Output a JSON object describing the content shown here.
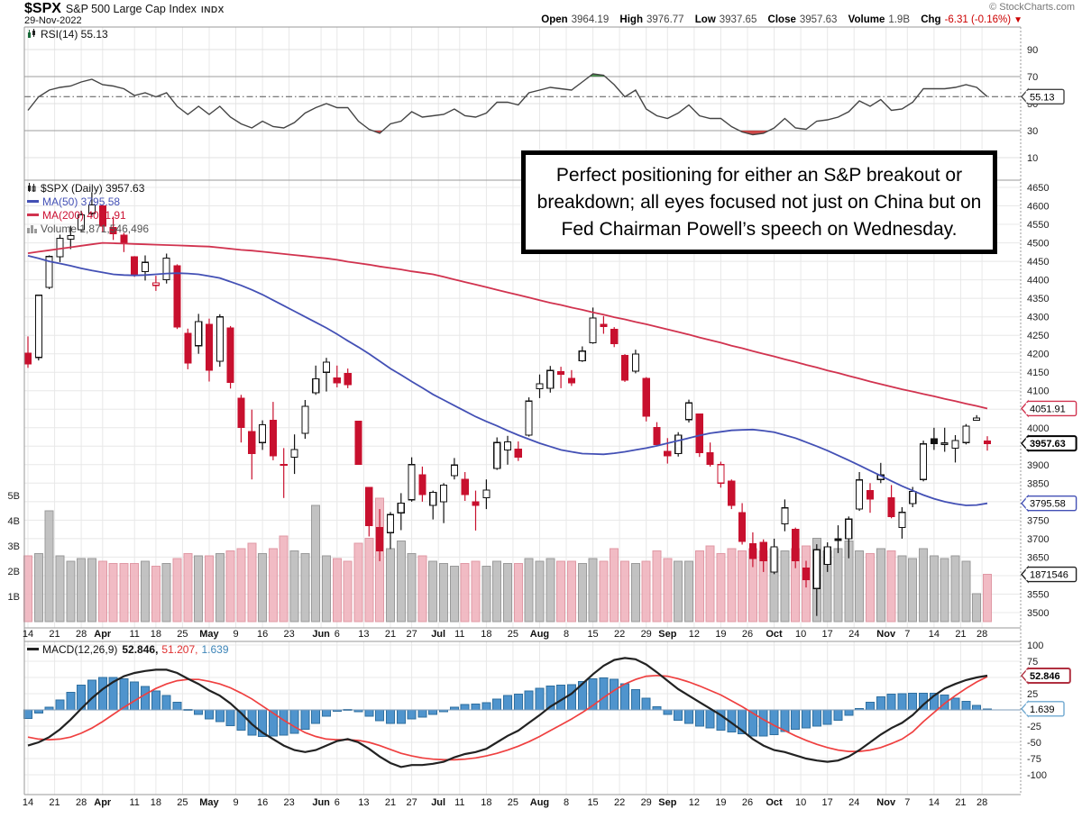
{
  "header": {
    "symbol": "$SPX",
    "name": "S&P 500 Large Cap Index",
    "exchange": "INDX",
    "date": "29-Nov-2022",
    "credit": "© StockCharts.com",
    "quote": {
      "open_label": "Open",
      "open": "3964.19",
      "high_label": "High",
      "high": "3976.77",
      "low_label": "Low",
      "low": "3937.65",
      "close_label": "Close",
      "close": "3957.63",
      "volume_label": "Volume",
      "volume": "1.9B",
      "chg_label": "Chg",
      "chg": "-6.31 (-0.16%)",
      "chg_arrow": "▼"
    }
  },
  "annotation": {
    "text": "Perfect positioning for either an S&P breakout or breakdown; all eyes focused not just on China but on Fed Chairman Powell’s speech on Wednesday."
  },
  "legends": {
    "rsi": "RSI(14) 55.13",
    "spx": "$SPX (Daily) 3957.63",
    "ma50": "MA(50) 3795.58",
    "ma200": "MA(200) 4051.91",
    "volume": "Volume 1,871,546,496",
    "macd_name": "MACD(12,26,9)",
    "macd_value": "52.846,",
    "signal_value": "51.207,",
    "hist_value": "1.639"
  },
  "callouts": {
    "rsi_last": "55.13",
    "ma200_last": "4051.91",
    "close_last": "3957.63",
    "ma50_last": "3795.58",
    "volume_last": "1871546",
    "macd_last": "52.846",
    "hist_last": "1.639"
  },
  "colors": {
    "candle_down": "#c8102e",
    "candle_up_stroke": "#000000",
    "ma50": "#4350b5",
    "ma200": "#d1334f",
    "macd_line": "#222222",
    "signal_line": "#ef4040",
    "hist_fill": "#4f94cd",
    "hist_stroke": "#2f6f9f",
    "vol_up": "#bcbcbc",
    "vol_up_stroke": "#909090",
    "vol_down": "#f0b4be",
    "vol_down_stroke": "#dd8e9c",
    "rsi_line": "#444444",
    "grid": "#e8e8e8",
    "border": "#999999",
    "overbought_fill": "#2e7d32",
    "oversold_fill": "#c62828",
    "neg": "#cc0000"
  },
  "chart_data": {
    "type": "candlestick+indicators",
    "symbol": "$SPX",
    "timeframe": "daily",
    "date_range": "14-Mar-2022 to 29-Nov-2022",
    "panels": [
      "RSI(14)",
      "price+volume",
      "MACD(12,26,9)"
    ],
    "rsi_axis": {
      "ticks": [
        90,
        70,
        50,
        30,
        10
      ],
      "overbought": 70,
      "oversold": 30,
      "last": 55.13
    },
    "price_axis": {
      "min": 3500,
      "max": 4650,
      "step": 50,
      "tick_labels": [
        4650,
        4600,
        4550,
        4500,
        4450,
        4400,
        4350,
        4300,
        4250,
        4200,
        4150,
        4100,
        4000,
        3900,
        3850,
        3750,
        3700,
        3650,
        3550,
        3500
      ]
    },
    "volume_axis": {
      "ticks": [
        [
          "5B",
          5
        ],
        [
          "4B",
          4
        ],
        [
          "3B",
          3
        ],
        [
          "2B",
          2
        ],
        [
          "1B",
          1
        ]
      ],
      "last_billions": 1.871546496
    },
    "macd_axis": {
      "min": -100,
      "max": 100,
      "step": 25,
      "tick_labels": [
        100,
        75,
        25,
        -25,
        -50,
        -75,
        -100
      ],
      "last_macd": 52.846,
      "last_signal": 51.207,
      "last_hist": 1.639
    },
    "x_ticks": [
      {
        "label": "14",
        "d": 0
      },
      {
        "label": "21",
        "d": 5
      },
      {
        "label": "28",
        "d": 10
      },
      {
        "label": "Apr",
        "d": 14,
        "bold": 1
      },
      {
        "label": "11",
        "d": 20
      },
      {
        "label": "18",
        "d": 24
      },
      {
        "label": "25",
        "d": 29
      },
      {
        "label": "May",
        "d": 34,
        "bold": 1
      },
      {
        "label": "9",
        "d": 39
      },
      {
        "label": "16",
        "d": 44
      },
      {
        "label": "23",
        "d": 49
      },
      {
        "label": "Jun",
        "d": 55,
        "bold": 1
      },
      {
        "label": "6",
        "d": 58
      },
      {
        "label": "13",
        "d": 63
      },
      {
        "label": "21",
        "d": 68
      },
      {
        "label": "27",
        "d": 72
      },
      {
        "label": "Jul",
        "d": 77,
        "bold": 1
      },
      {
        "label": "11",
        "d": 81
      },
      {
        "label": "18",
        "d": 86
      },
      {
        "label": "25",
        "d": 91
      },
      {
        "label": "Aug",
        "d": 96,
        "bold": 1
      },
      {
        "label": "8",
        "d": 101
      },
      {
        "label": "15",
        "d": 106
      },
      {
        "label": "22",
        "d": 111
      },
      {
        "label": "29",
        "d": 116
      },
      {
        "label": "Sep",
        "d": 120,
        "bold": 1
      },
      {
        "label": "12",
        "d": 125
      },
      {
        "label": "19",
        "d": 130
      },
      {
        "label": "26",
        "d": 135
      },
      {
        "label": "Oct",
        "d": 140,
        "bold": 1
      },
      {
        "label": "10",
        "d": 145
      },
      {
        "label": "17",
        "d": 150
      },
      {
        "label": "24",
        "d": 155
      },
      {
        "label": "Nov",
        "d": 161,
        "bold": 1
      },
      {
        "label": "7",
        "d": 165
      },
      {
        "label": "14",
        "d": 170
      },
      {
        "label": "21",
        "d": 175
      },
      {
        "label": "28",
        "d": 179
      }
    ],
    "candles_note": "sampled every 2nd trading day; [dayIndex, open, high, low, close, volumeBillions]",
    "candles": [
      [
        0,
        4202,
        4247,
        4162,
        4173,
        2.6
      ],
      [
        2,
        4190,
        4360,
        4182,
        4358,
        2.7
      ],
      [
        4,
        4380,
        4466,
        4375,
        4463,
        4.4
      ],
      [
        6,
        4462,
        4522,
        4448,
        4512,
        2.6
      ],
      [
        8,
        4510,
        4546,
        4483,
        4520,
        2.4
      ],
      [
        10,
        4535,
        4587,
        4528,
        4576,
        2.5
      ],
      [
        12,
        4580,
        4637,
        4573,
        4603,
        2.5
      ],
      [
        14,
        4600,
        4604,
        4530,
        4546,
        2.4
      ],
      [
        16,
        4542,
        4571,
        4508,
        4525,
        2.3
      ],
      [
        18,
        4521,
        4527,
        4475,
        4500,
        2.3
      ],
      [
        20,
        4462,
        4464,
        4408,
        4413,
        2.3
      ],
      [
        22,
        4422,
        4466,
        4398,
        4447,
        2.4
      ],
      [
        24,
        4385,
        4411,
        4370,
        4392,
        2.2
      ],
      [
        26,
        4400,
        4471,
        4390,
        4459,
        2.3
      ],
      [
        28,
        4438,
        4442,
        4267,
        4272,
        2.5
      ],
      [
        30,
        4255,
        4268,
        4158,
        4175,
        2.7
      ],
      [
        32,
        4222,
        4308,
        4200,
        4287,
        2.6
      ],
      [
        34,
        4280,
        4295,
        4125,
        4155,
        2.6
      ],
      [
        36,
        4180,
        4307,
        4165,
        4300,
        2.7
      ],
      [
        38,
        4270,
        4275,
        4106,
        4123,
        2.8
      ],
      [
        40,
        4080,
        4089,
        3960,
        4001,
        2.9
      ],
      [
        42,
        3990,
        4049,
        3860,
        3930,
        3.1
      ],
      [
        44,
        3960,
        4020,
        3940,
        4008,
        2.7
      ],
      [
        46,
        4020,
        4070,
        3912,
        3924,
        2.9
      ],
      [
        48,
        3900,
        3945,
        3810,
        3901,
        3.4
      ],
      [
        50,
        3920,
        3982,
        3875,
        3941,
        2.8
      ],
      [
        52,
        3985,
        4075,
        3970,
        4058,
        2.7
      ],
      [
        54,
        4095,
        4168,
        4089,
        4132,
        4.6
      ],
      [
        56,
        4150,
        4189,
        4098,
        4177,
        2.6
      ],
      [
        58,
        4134,
        4168,
        4109,
        4121,
        2.5
      ],
      [
        60,
        4147,
        4160,
        4107,
        4116,
        2.4
      ],
      [
        62,
        4017,
        4018,
        3900,
        3901,
        3.1
      ],
      [
        64,
        3838,
        3838,
        3706,
        3736,
        3.3
      ],
      [
        66,
        3730,
        3780,
        3639,
        3667,
        4.9
      ],
      [
        68,
        3716,
        3772,
        3672,
        3765,
        2.9
      ],
      [
        70,
        3770,
        3823,
        3723,
        3796,
        3.2
      ],
      [
        72,
        3805,
        3920,
        3800,
        3900,
        2.7
      ],
      [
        74,
        3873,
        3895,
        3800,
        3819,
        2.6
      ],
      [
        76,
        3790,
        3830,
        3752,
        3825,
        2.4
      ],
      [
        78,
        3800,
        3850,
        3742,
        3845,
        2.3
      ],
      [
        80,
        3870,
        3918,
        3860,
        3899,
        2.2
      ],
      [
        82,
        3860,
        3880,
        3802,
        3819,
        2.3
      ],
      [
        84,
        3800,
        3830,
        3722,
        3790,
        2.4
      ],
      [
        86,
        3810,
        3860,
        3780,
        3831,
        2.2
      ],
      [
        88,
        3890,
        3974,
        3886,
        3960,
        2.4
      ],
      [
        90,
        3940,
        3978,
        3900,
        3962,
        2.3
      ],
      [
        92,
        3942,
        3963,
        3910,
        3921,
        2.3
      ],
      [
        94,
        3980,
        4082,
        3976,
        4072,
        2.5
      ],
      [
        96,
        4105,
        4144,
        4080,
        4119,
        2.4
      ],
      [
        98,
        4107,
        4167,
        4095,
        4155,
        2.5
      ],
      [
        100,
        4152,
        4165,
        4107,
        4145,
        2.4
      ],
      [
        102,
        4133,
        4156,
        4113,
        4122,
        2.4
      ],
      [
        104,
        4181,
        4220,
        4178,
        4207,
        2.3
      ],
      [
        106,
        4230,
        4325,
        4227,
        4297,
        2.5
      ],
      [
        108,
        4280,
        4302,
        4254,
        4274,
        2.4
      ],
      [
        110,
        4266,
        4272,
        4218,
        4228,
        2.9
      ],
      [
        112,
        4195,
        4199,
        4124,
        4129,
        2.4
      ],
      [
        114,
        4153,
        4211,
        4147,
        4199,
        2.3
      ],
      [
        116,
        4133,
        4137,
        4017,
        4031,
        2.4
      ],
      [
        118,
        4000,
        4015,
        3954,
        3955,
        2.8
      ],
      [
        120,
        3936,
        3972,
        3903,
        3924,
        2.5
      ],
      [
        122,
        3930,
        3988,
        3922,
        3980,
        2.4
      ],
      [
        124,
        4022,
        4076,
        4014,
        4067,
        2.4
      ],
      [
        126,
        4037,
        4038,
        3921,
        3933,
        2.8
      ],
      [
        128,
        3932,
        3960,
        3895,
        3901,
        3.0
      ],
      [
        130,
        3850,
        3908,
        3838,
        3900,
        2.7
      ],
      [
        132,
        3855,
        3860,
        3780,
        3790,
        2.9
      ],
      [
        134,
        3770,
        3796,
        3684,
        3693,
        2.8
      ],
      [
        136,
        3686,
        3717,
        3623,
        3647,
        2.9
      ],
      [
        138,
        3690,
        3698,
        3610,
        3640,
        2.8
      ],
      [
        140,
        3610,
        3700,
        3604,
        3678,
        2.9
      ],
      [
        142,
        3740,
        3806,
        3720,
        3783,
        2.8
      ],
      [
        144,
        3725,
        3730,
        3620,
        3640,
        2.9
      ],
      [
        146,
        3620,
        3640,
        3568,
        3589,
        3.0
      ],
      [
        148,
        3565,
        3685,
        3491,
        3670,
        3.3
      ],
      [
        150,
        3630,
        3690,
        3610,
        3678,
        2.8
      ],
      [
        152,
        3700,
        3736,
        3661,
        3695,
        2.9
      ],
      [
        154,
        3700,
        3760,
        3647,
        3753,
        3.2
      ],
      [
        156,
        3780,
        3880,
        3775,
        3859,
        2.8
      ],
      [
        158,
        3830,
        3850,
        3770,
        3807,
        2.7
      ],
      [
        160,
        3860,
        3905,
        3850,
        3872,
        2.9
      ],
      [
        162,
        3810,
        3845,
        3755,
        3760,
        2.8
      ],
      [
        164,
        3730,
        3785,
        3700,
        3771,
        2.6
      ],
      [
        166,
        3795,
        3840,
        3785,
        3828,
        2.5
      ],
      [
        168,
        3860,
        3965,
        3855,
        3956,
        2.9
      ],
      [
        170,
        3970,
        4000,
        3940,
        3957,
        2.6
      ],
      [
        172,
        3955,
        4000,
        3935,
        3959,
        2.5
      ],
      [
        174,
        3945,
        3980,
        3906,
        3965,
        2.6
      ],
      [
        176,
        3960,
        4010,
        3955,
        4004,
        2.4
      ],
      [
        178,
        4020,
        4034,
        4020,
        4026,
        1.1
      ],
      [
        180,
        3964,
        3977,
        3938,
        3957.63,
        1.87
      ]
    ],
    "ma50": [
      4465,
      4458,
      4450,
      4444,
      4438,
      4431,
      4425,
      4420,
      4415,
      4413,
      4412,
      4413,
      4415,
      4417,
      4418,
      4417,
      4415,
      4410,
      4405,
      4395,
      4385,
      4373,
      4360,
      4345,
      4330,
      4315,
      4300,
      4285,
      4270,
      4253,
      4235,
      4218,
      4200,
      4180,
      4160,
      4143,
      4125,
      4108,
      4090,
      4075,
      4060,
      4045,
      4030,
      4017,
      4005,
      3992,
      3980,
      3969,
      3958,
      3949,
      3940,
      3935,
      3930,
      3929,
      3928,
      3931,
      3935,
      3940,
      3945,
      3951,
      3958,
      3965,
      3972,
      3979,
      3985,
      3989,
      3993,
      3994,
      3995,
      3992,
      3988,
      3980,
      3972,
      3961,
      3950,
      3938,
      3925,
      3912,
      3898,
      3884,
      3870,
      3856,
      3842,
      3830,
      3818,
      3808,
      3800,
      3794,
      3790,
      3791,
      3795.58
    ],
    "ma200": [
      4472,
      4476,
      4480,
      4484,
      4488,
      4492,
      4496,
      4500,
      4499,
      4498,
      4497,
      4496,
      4495,
      4494,
      4493,
      4492,
      4491,
      4490,
      4487,
      4484,
      4481,
      4479,
      4476,
      4473,
      4470,
      4467,
      4464,
      4461,
      4458,
      4454,
      4449,
      4445,
      4441,
      4436,
      4432,
      4428,
      4423,
      4419,
      4415,
      4408,
      4401,
      4394,
      4387,
      4380,
      4373,
      4366,
      4359,
      4352,
      4345,
      4338,
      4332,
      4325,
      4319,
      4312,
      4306,
      4299,
      4293,
      4286,
      4280,
      4273,
      4266,
      4259,
      4252,
      4244,
      4237,
      4230,
      4222,
      4215,
      4207,
      4200,
      4193,
      4185,
      4178,
      4170,
      4163,
      4155,
      4148,
      4140,
      4133,
      4125,
      4118,
      4111,
      4104,
      4098,
      4091,
      4085,
      4078,
      4072,
      4065,
      4059,
      4051.91
    ],
    "rsi": [
      45,
      55,
      60,
      62,
      63,
      66,
      68,
      64,
      63,
      61,
      56,
      58,
      55,
      58,
      48,
      42,
      48,
      42,
      48,
      40,
      35,
      32,
      37,
      33,
      32,
      36,
      43,
      47,
      50,
      47,
      47,
      37,
      31,
      28,
      35,
      37,
      44,
      40,
      41,
      42,
      46,
      41,
      40,
      43,
      51,
      51,
      49,
      58,
      60,
      62,
      61,
      60,
      66,
      72,
      71,
      64,
      55,
      60,
      46,
      41,
      39,
      43,
      49,
      41,
      39,
      39,
      33,
      29,
      27,
      28,
      32,
      39,
      32,
      31,
      37,
      38,
      40,
      44,
      52,
      48,
      53,
      45,
      46,
      51,
      61,
      61,
      61,
      62,
      64,
      62,
      55.13
    ],
    "macd": [
      -55,
      -50,
      -42,
      -30,
      -15,
      2,
      18,
      32,
      43,
      52,
      57,
      60,
      62,
      62,
      57,
      48,
      40,
      30,
      22,
      10,
      -5,
      -22,
      -35,
      -45,
      -55,
      -62,
      -65,
      -62,
      -55,
      -48,
      -45,
      -50,
      -60,
      -72,
      -82,
      -88,
      -85,
      -85,
      -83,
      -80,
      -73,
      -68,
      -65,
      -60,
      -50,
      -40,
      -32,
      -20,
      -8,
      5,
      15,
      25,
      40,
      55,
      68,
      77,
      80,
      78,
      70,
      58,
      45,
      32,
      22,
      12,
      2,
      -8,
      -20,
      -32,
      -45,
      -55,
      -62,
      -65,
      -70,
      -75,
      -78,
      -80,
      -78,
      -72,
      -62,
      -50,
      -38,
      -28,
      -20,
      -8,
      8,
      22,
      33,
      40,
      46,
      50,
      52.846
    ],
    "signal": [
      -42,
      -45,
      -46,
      -45,
      -42,
      -36,
      -28,
      -18,
      -7,
      4,
      14,
      24,
      33,
      40,
      45,
      47,
      47,
      44,
      40,
      34,
      26,
      17,
      6,
      -5,
      -16,
      -26,
      -35,
      -41,
      -45,
      -46,
      -46,
      -47,
      -50,
      -55,
      -61,
      -67,
      -71,
      -74,
      -76,
      -77,
      -77,
      -76,
      -74,
      -71,
      -67,
      -62,
      -56,
      -49,
      -41,
      -32,
      -23,
      -14,
      -4,
      7,
      19,
      30,
      40,
      47,
      52,
      53,
      52,
      48,
      43,
      37,
      30,
      23,
      14,
      5,
      -5,
      -15,
      -24,
      -32,
      -40,
      -47,
      -53,
      -58,
      -62,
      -64,
      -64,
      -62,
      -58,
      -52,
      -45,
      -34,
      -18,
      -4,
      10,
      22,
      33,
      43,
      51.207
    ]
  }
}
